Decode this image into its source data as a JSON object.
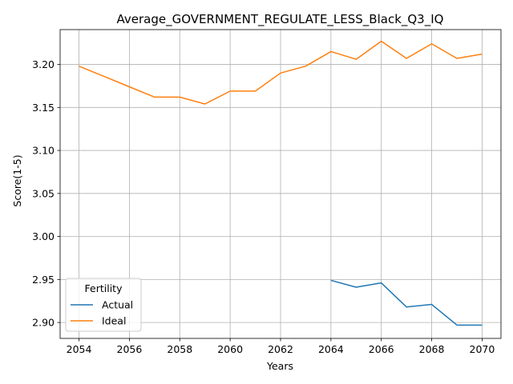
{
  "chart_data": {
    "type": "line",
    "title": "Average_GOVERNMENT_REGULATE_LESS_Black_Q3_IQ",
    "xlabel": "Years",
    "ylabel": "Score(1-5)",
    "xlim": [
      2053.25,
      2070.75
    ],
    "ylim": [
      2.8815,
      3.2405
    ],
    "xticks": [
      2054,
      2056,
      2058,
      2060,
      2062,
      2064,
      2066,
      2068,
      2070
    ],
    "yticks": [
      2.9,
      2.95,
      3.0,
      3.05,
      3.1,
      3.15,
      3.2
    ],
    "ytick_labels": [
      "2.90",
      "2.95",
      "3.00",
      "3.05",
      "3.10",
      "3.15",
      "3.20"
    ],
    "grid": true,
    "legend": {
      "title": "Fertility",
      "placement": "lower-left"
    },
    "series": [
      {
        "name": "Actual",
        "color": "#1f77b4",
        "x": [
          2064,
          2065,
          2066,
          2067,
          2068,
          2069,
          2070
        ],
        "values": [
          2.949,
          2.941,
          2.946,
          2.918,
          2.921,
          2.897,
          2.897
        ]
      },
      {
        "name": "Ideal",
        "color": "#ff7f0e",
        "x": [
          2054,
          2055,
          2056,
          2057,
          2058,
          2059,
          2060,
          2061,
          2062,
          2063,
          2064,
          2065,
          2066,
          2067,
          2068,
          2069,
          2070
        ],
        "values": [
          3.198,
          3.186,
          3.174,
          3.162,
          3.162,
          3.154,
          3.169,
          3.169,
          3.19,
          3.198,
          3.215,
          3.206,
          3.227,
          3.207,
          3.224,
          3.207,
          3.212
        ]
      }
    ]
  }
}
